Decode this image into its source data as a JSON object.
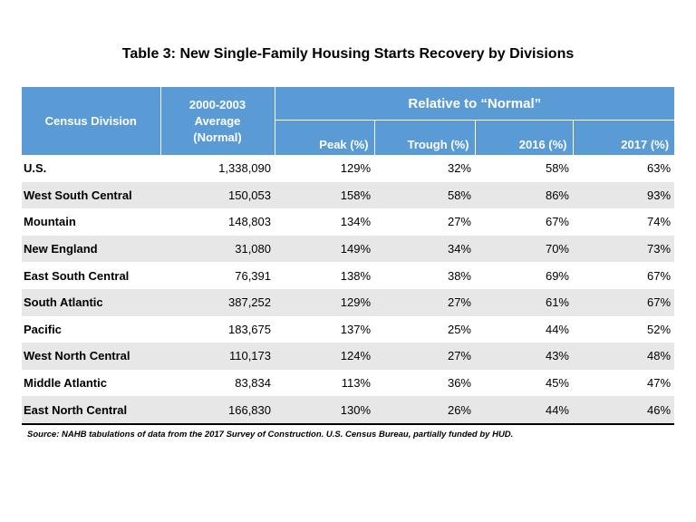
{
  "title": "Table 3: New Single-Family Housing Starts Recovery by Divisions",
  "source": "Source: NAHB tabulations  of data from the 2017 Survey of Construction.  U.S. Census  Bureau, partially funded by HUD.",
  "colors": {
    "header_bg": "#5b9bd5",
    "row_shade": "#e7e7e7",
    "header_text": "#ffffff"
  },
  "chart_data": {
    "type": "table",
    "title": "Table 3: New Single-Family Housing Starts Recovery by Divisions",
    "headers": {
      "division": "Census Division",
      "average": [
        "2000-2003",
        "Average",
        "(Normal)"
      ],
      "relative_group": "Relative to “Normal”",
      "columns": [
        "Peak (%)",
        "Trough  (%)",
        "2016 (%)",
        "2017 (%)"
      ]
    },
    "rows": [
      {
        "division": "U.S.",
        "average": "1,338,090",
        "peak": "129%",
        "trough": "32%",
        "y2016": "58%",
        "y2017": "63%"
      },
      {
        "division": "West South Central",
        "average": "150,053",
        "peak": "158%",
        "trough": "58%",
        "y2016": "86%",
        "y2017": "93%"
      },
      {
        "division": "Mountain",
        "average": "148,803",
        "peak": "134%",
        "trough": "27%",
        "y2016": "67%",
        "y2017": "74%"
      },
      {
        "division": "New England",
        "average": "31,080",
        "peak": "149%",
        "trough": "34%",
        "y2016": "70%",
        "y2017": "73%"
      },
      {
        "division": "East South Central",
        "average": "76,391",
        "peak": "138%",
        "trough": "38%",
        "y2016": "69%",
        "y2017": "67%"
      },
      {
        "division": "South Atlantic",
        "average": "387,252",
        "peak": "129%",
        "trough": "27%",
        "y2016": "61%",
        "y2017": "67%"
      },
      {
        "division": "Pacific",
        "average": "183,675",
        "peak": "137%",
        "trough": "25%",
        "y2016": "44%",
        "y2017": "52%"
      },
      {
        "division": "West North Central",
        "average": "110,173",
        "peak": "124%",
        "trough": "27%",
        "y2016": "43%",
        "y2017": "48%"
      },
      {
        "division": "Middle Atlantic",
        "average": "83,834",
        "peak": "113%",
        "trough": "36%",
        "y2016": "45%",
        "y2017": "47%"
      },
      {
        "division": "East North Central",
        "average": "166,830",
        "peak": "130%",
        "trough": "26%",
        "y2016": "44%",
        "y2017": "46%"
      }
    ]
  }
}
